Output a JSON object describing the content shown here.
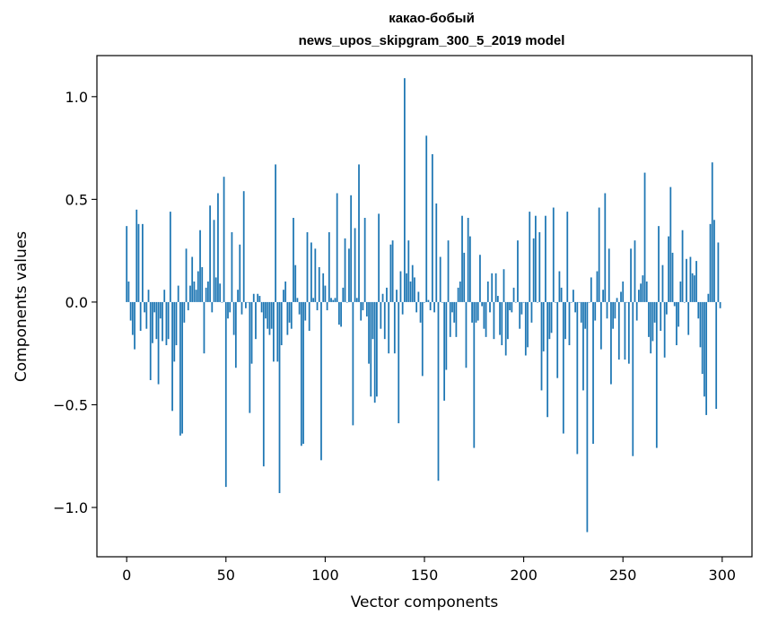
{
  "chart_data": {
    "type": "bar",
    "title": [
      "какао-бобый",
      "news_upos_skipgram_300_5_2019 model"
    ],
    "xlabel": "Vector components",
    "ylabel": "Components values",
    "xlim": [
      -15,
      315
    ],
    "ylim": [
      -1.24,
      1.2
    ],
    "xticks": [
      0,
      50,
      100,
      150,
      200,
      250,
      300
    ],
    "xtick_labels": [
      "0",
      "50",
      "100",
      "150",
      "200",
      "250",
      "300"
    ],
    "yticks": [
      -1.0,
      -0.5,
      0.0,
      0.5,
      1.0
    ],
    "ytick_labels": [
      "−1.0",
      "−0.5",
      "0.0",
      "0.5",
      "1.0"
    ],
    "grid": false,
    "bar_color": "#1f77b4",
    "x": "0..299",
    "values": [
      0.37,
      0.1,
      -0.09,
      -0.16,
      -0.23,
      0.45,
      0.38,
      -0.14,
      0.38,
      -0.05,
      -0.13,
      0.06,
      -0.38,
      -0.2,
      -0.05,
      -0.18,
      -0.4,
      -0.08,
      -0.19,
      0.06,
      -0.21,
      -0.18,
      0.44,
      -0.53,
      -0.29,
      -0.21,
      0.08,
      -0.65,
      -0.64,
      -0.1,
      0.26,
      -0.04,
      0.08,
      0.22,
      0.1,
      0.06,
      0.15,
      0.35,
      0.17,
      -0.25,
      0.07,
      0.1,
      0.47,
      -0.05,
      0.4,
      0.12,
      0.53,
      0.09,
      0.0,
      0.61,
      -0.9,
      -0.08,
      -0.05,
      0.34,
      -0.16,
      -0.32,
      0.06,
      0.28,
      -0.06,
      0.54,
      -0.03,
      0.0,
      -0.54,
      -0.3,
      0.04,
      -0.18,
      0.04,
      0.03,
      -0.05,
      -0.8,
      -0.08,
      -0.13,
      -0.16,
      -0.13,
      -0.29,
      0.67,
      -0.29,
      -0.93,
      -0.21,
      0.06,
      0.1,
      -0.16,
      -0.1,
      -0.13,
      0.41,
      0.18,
      0.02,
      -0.06,
      -0.7,
      -0.69,
      -0.09,
      0.34,
      -0.14,
      0.29,
      0.02,
      0.26,
      -0.04,
      0.17,
      -0.77,
      0.14,
      0.08,
      -0.04,
      0.34,
      0.02,
      0.01,
      0.02,
      0.53,
      -0.11,
      -0.12,
      0.07,
      0.31,
      0.0,
      0.26,
      0.52,
      -0.6,
      0.36,
      0.02,
      0.67,
      -0.09,
      -0.04,
      0.41,
      -0.07,
      -0.3,
      -0.46,
      -0.18,
      -0.49,
      -0.46,
      0.43,
      -0.13,
      0.04,
      -0.18,
      0.07,
      -0.25,
      0.28,
      0.3,
      -0.25,
      0.06,
      -0.59,
      0.15,
      -0.06,
      1.09,
      0.14,
      0.3,
      0.1,
      0.18,
      0.12,
      -0.05,
      0.05,
      -0.1,
      -0.36,
      0.0,
      0.81,
      0.01,
      -0.04,
      0.72,
      -0.05,
      0.48,
      -0.87,
      0.22,
      0.0,
      -0.48,
      -0.33,
      0.3,
      -0.17,
      -0.05,
      -0.1,
      -0.17,
      0.07,
      0.1,
      0.42,
      0.24,
      -0.32,
      0.41,
      0.32,
      -0.1,
      -0.71,
      -0.1,
      -0.09,
      0.23,
      -0.02,
      -0.13,
      -0.17,
      0.1,
      -0.05,
      0.14,
      -0.18,
      0.14,
      0.03,
      -0.16,
      -0.21,
      0.16,
      -0.26,
      -0.18,
      -0.04,
      -0.05,
      0.07,
      0.0,
      0.3,
      -0.13,
      -0.06,
      0.0,
      -0.26,
      -0.22,
      0.44,
      -0.1,
      0.31,
      0.42,
      0.0,
      0.34,
      -0.43,
      -0.24,
      0.42,
      -0.56,
      -0.18,
      -0.15,
      0.46,
      0.0,
      -0.37,
      0.15,
      0.07,
      -0.64,
      -0.18,
      0.44,
      -0.21,
      0.0,
      0.06,
      -0.05,
      -0.74,
      0.0,
      -0.1,
      -0.43,
      -0.13,
      -1.12,
      0.0,
      0.12,
      -0.69,
      -0.09,
      0.15,
      0.46,
      -0.23,
      0.06,
      0.53,
      -0.08,
      0.26,
      -0.4,
      -0.13,
      -0.08,
      0.02,
      -0.28,
      0.05,
      0.1,
      -0.28,
      0.0,
      -0.3,
      0.26,
      -0.75,
      0.3,
      -0.09,
      0.06,
      0.09,
      0.13,
      0.63,
      0.1,
      -0.17,
      -0.25,
      -0.19,
      -0.1,
      -0.71,
      0.37,
      -0.14,
      0.18,
      -0.27,
      -0.06,
      0.32,
      0.56,
      0.24,
      -0.02,
      -0.21,
      -0.12,
      0.1,
      0.35,
      0.0,
      0.21,
      -0.16,
      0.22,
      0.14,
      0.13,
      0.2,
      -0.08,
      -0.22,
      -0.35,
      -0.46,
      -0.55,
      0.04,
      0.38,
      0.68,
      0.4,
      -0.52,
      0.29,
      -0.03
    ]
  }
}
